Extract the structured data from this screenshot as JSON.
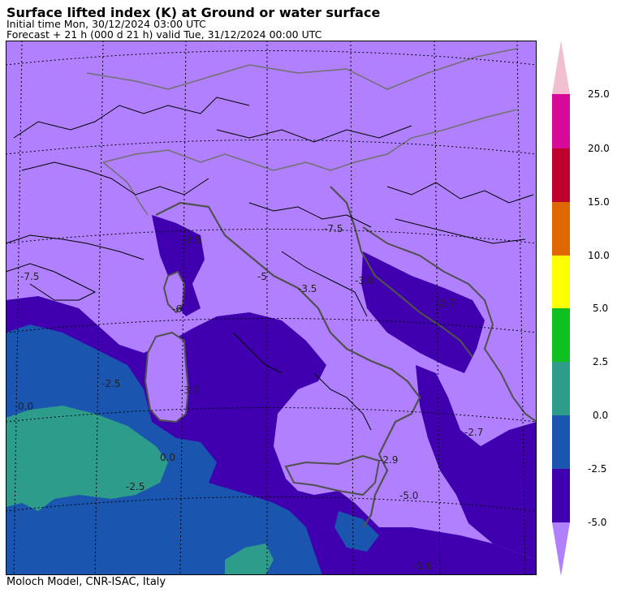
{
  "header": {
    "title": "Surface lifted index (K) at Ground or water surface",
    "initial": "Initial time  Mon, 30/12/2024  03:00 UTC",
    "forecast": "Forecast  +  21 h  (000 d 21 h)  valid Tue, 31/12/2024 00:00 UTC"
  },
  "footer": "Moloch Model, CNR-ISAC, Italy",
  "legend": {
    "labels": [
      "25.0",
      "20.0",
      "15.0",
      "10.0",
      "5.0",
      "2.5",
      "0.0",
      "-2.5",
      "-5.0"
    ],
    "colors": [
      "#f0c0d0",
      "#d80898",
      "#c0002c",
      "#e06800",
      "#ffff00",
      "#10c020",
      "#2e9c8a",
      "#1a55b0",
      "#4000b0",
      "#b080ff"
    ]
  },
  "map": {
    "colors": {
      "background": "#b080ff",
      "deep": "#4000b0",
      "blue": "#1a55b0",
      "teal": "#2e9c8a",
      "coast": "#505050",
      "contour": "#000000"
    },
    "contour_labels": [
      "-7.5",
      "-3.5",
      "-5",
      "-6",
      "-3.5",
      "-7.5",
      "-3.0",
      "-2.5",
      "0.0",
      "-2.7",
      "-2.7",
      "0.0",
      "-2.5",
      "-2.9",
      "-5.0",
      "-5.0",
      "-3.7"
    ]
  }
}
